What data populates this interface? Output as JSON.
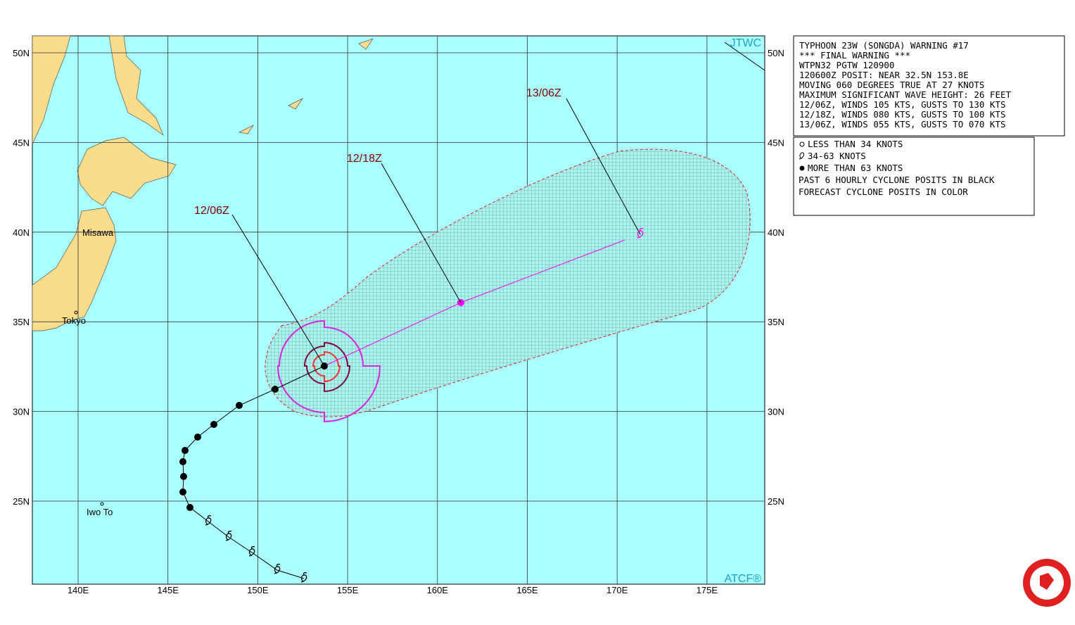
{
  "map": {
    "lon_labels": [
      "140E",
      "145E",
      "150E",
      "155E",
      "160E",
      "165E",
      "170E",
      "175E"
    ],
    "lat_labels": [
      "50N",
      "45N",
      "40N",
      "35N",
      "30N",
      "25N"
    ],
    "places": [
      "Misawa",
      "Tokyo",
      "Iwo To"
    ],
    "forecast_labels": [
      "12/06Z",
      "12/18Z",
      "13/06Z"
    ],
    "credits": [
      "JTWC",
      "ATCF®"
    ]
  },
  "warning": {
    "lines": [
      "TYPHOON 23W (SONGDA) WARNING #17",
      "*** FINAL WARNING ***",
      "WTPN32 PGTW 120900",
      "120600Z POSIT: NEAR 32.5N 153.8E",
      "MOVING 060 DEGREES TRUE AT 27 KNOTS",
      "MAXIMUM SIGNIFICANT WAVE HEIGHT: 26 FEET",
      "12/06Z, WINDS 105 KTS, GUSTS TO 130 KTS",
      "12/18Z, WINDS 080 KTS, GUSTS TO 100 KTS",
      "13/06Z, WINDS 055 KTS, GUSTS TO 070 KTS"
    ]
  },
  "legend": {
    "lines": [
      "LESS THAN 34 KNOTS",
      "34-63 KNOTS",
      "MORE THAN 63 KNOTS",
      "PAST 6 HOURLY CYCLONE POSITS IN BLACK",
      "FORECAST CYCLONE POSITS IN COLOR"
    ]
  }
}
